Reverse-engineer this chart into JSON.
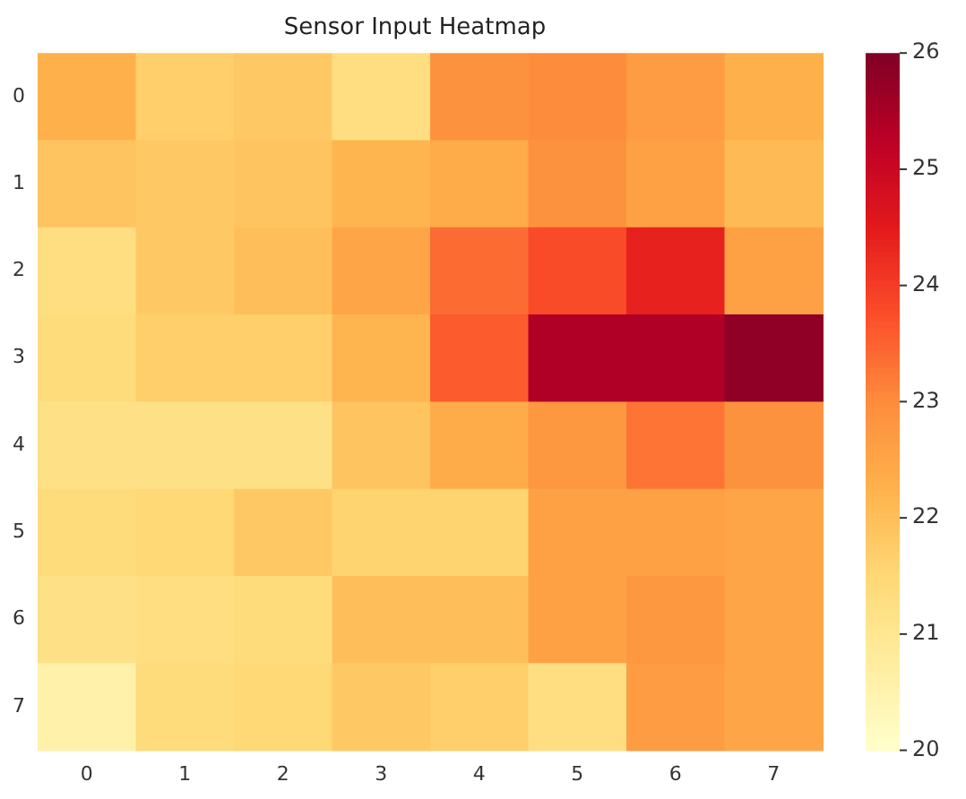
{
  "chart_data": {
    "type": "heatmap",
    "title": "Sensor Input Heatmap",
    "categories": [
      "0",
      "1",
      "2",
      "3",
      "4",
      "5",
      "6",
      "7"
    ],
    "y_categories": [
      "0",
      "1",
      "2",
      "3",
      "4",
      "5",
      "6",
      "7"
    ],
    "cells": [
      [
        22.3,
        21.7,
        21.8,
        21.3,
        22.9,
        23.0,
        22.7,
        22.3
      ],
      [
        21.9,
        21.8,
        21.9,
        22.2,
        22.4,
        22.9,
        22.6,
        22.1
      ],
      [
        21.3,
        21.8,
        22.0,
        22.5,
        23.4,
        23.8,
        24.4,
        22.6
      ],
      [
        21.4,
        21.7,
        21.7,
        22.2,
        23.6,
        25.4,
        25.4,
        25.8
      ],
      [
        21.2,
        21.2,
        21.2,
        21.9,
        22.4,
        22.8,
        23.3,
        22.9
      ],
      [
        21.4,
        21.5,
        21.8,
        21.6,
        21.6,
        22.6,
        22.6,
        22.5
      ],
      [
        21.2,
        21.3,
        21.4,
        22.0,
        22.0,
        22.6,
        22.8,
        22.5
      ],
      [
        20.6,
        21.4,
        21.5,
        21.8,
        21.7,
        21.3,
        22.7,
        22.5
      ]
    ],
    "clim": [
      20,
      26
    ],
    "cticks": [
      20,
      21,
      22,
      23,
      24,
      25,
      26
    ],
    "grid": false,
    "legend": false
  }
}
